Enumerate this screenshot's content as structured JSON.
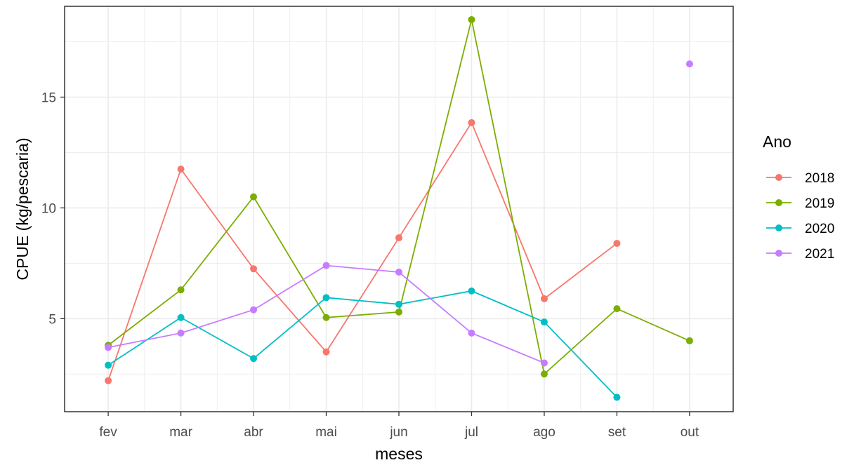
{
  "chart_data": {
    "type": "line",
    "categories": [
      "fev",
      "mar",
      "abr",
      "mai",
      "jun",
      "jul",
      "ago",
      "set",
      "out"
    ],
    "xlabel": "meses",
    "ylabel": "CPUE (kg/pescaria)",
    "ylim": [
      0.8,
      19.1
    ],
    "yticks": [
      5,
      10,
      15
    ],
    "grid": true,
    "legend": {
      "title": "Ano",
      "position": "right"
    },
    "series": [
      {
        "name": "2018",
        "color": "#F8766D",
        "values": [
          2.2,
          11.75,
          7.25,
          3.5,
          8.65,
          13.85,
          5.9,
          8.4,
          null
        ]
      },
      {
        "name": "2019",
        "color": "#7CAE00",
        "values": [
          3.8,
          6.3,
          10.5,
          5.05,
          5.3,
          18.5,
          2.5,
          5.45,
          4.0
        ]
      },
      {
        "name": "2020",
        "color": "#00BFC4",
        "values": [
          2.9,
          5.05,
          3.2,
          5.95,
          5.65,
          6.25,
          4.85,
          1.45,
          null
        ]
      },
      {
        "name": "2021",
        "color": "#C77CFF",
        "values": [
          3.7,
          4.35,
          5.4,
          7.4,
          7.1,
          4.35,
          3.0,
          null,
          16.5
        ]
      }
    ]
  }
}
